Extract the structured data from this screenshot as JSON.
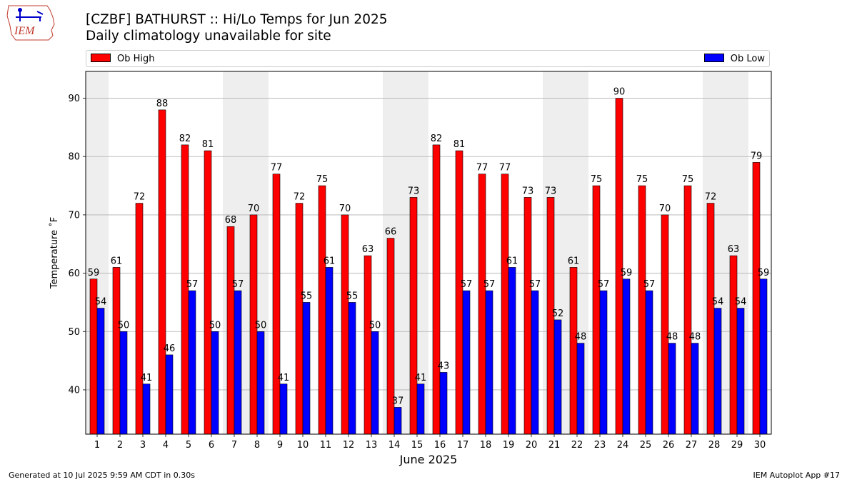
{
  "header": {
    "title": "[CZBF] BATHURST :: Hi/Lo Temps for Jun 2025",
    "subtitle": "Daily climatology unavailable for site"
  },
  "logo": {
    "text": "IEM"
  },
  "legend": {
    "high_label": "Ob High",
    "low_label": "Ob Low"
  },
  "colors": {
    "high": "#ff0000",
    "low": "#0000ff",
    "weekend": "#eeeeee",
    "grid": "#b0b0b0"
  },
  "chart_data": {
    "type": "bar",
    "xlabel": "June 2025",
    "ylabel": "Temperature ˚F",
    "ylim": [
      32.4,
      94.6
    ],
    "yticks": [
      40,
      50,
      60,
      70,
      80,
      90
    ],
    "grid": "horizontal",
    "legend_position": "top",
    "shaded_days": [
      1,
      7,
      8,
      14,
      15,
      21,
      22,
      28,
      29
    ],
    "categories": [
      "1",
      "2",
      "3",
      "4",
      "5",
      "6",
      "7",
      "8",
      "9",
      "10",
      "11",
      "12",
      "13",
      "14",
      "15",
      "16",
      "17",
      "18",
      "19",
      "20",
      "21",
      "22",
      "23",
      "24",
      "25",
      "26",
      "27",
      "28",
      "29",
      "30"
    ],
    "series": [
      {
        "name": "Ob High",
        "values": [
          59,
          61,
          72,
          88,
          82,
          81,
          68,
          70,
          77,
          72,
          75,
          70,
          63,
          66,
          73,
          82,
          81,
          77,
          77,
          73,
          73,
          61,
          75,
          90,
          75,
          70,
          75,
          72,
          63,
          79
        ]
      },
      {
        "name": "Ob Low",
        "values": [
          54,
          50,
          41,
          46,
          57,
          50,
          57,
          50,
          41,
          55,
          61,
          55,
          50,
          37,
          41,
          43,
          57,
          57,
          61,
          57,
          52,
          48,
          57,
          59,
          57,
          48,
          48,
          54,
          54,
          59
        ]
      }
    ]
  },
  "footer": {
    "left": "Generated at 10 Jul 2025 9:59 AM CDT in 0.30s",
    "right": "IEM Autoplot App #17"
  }
}
